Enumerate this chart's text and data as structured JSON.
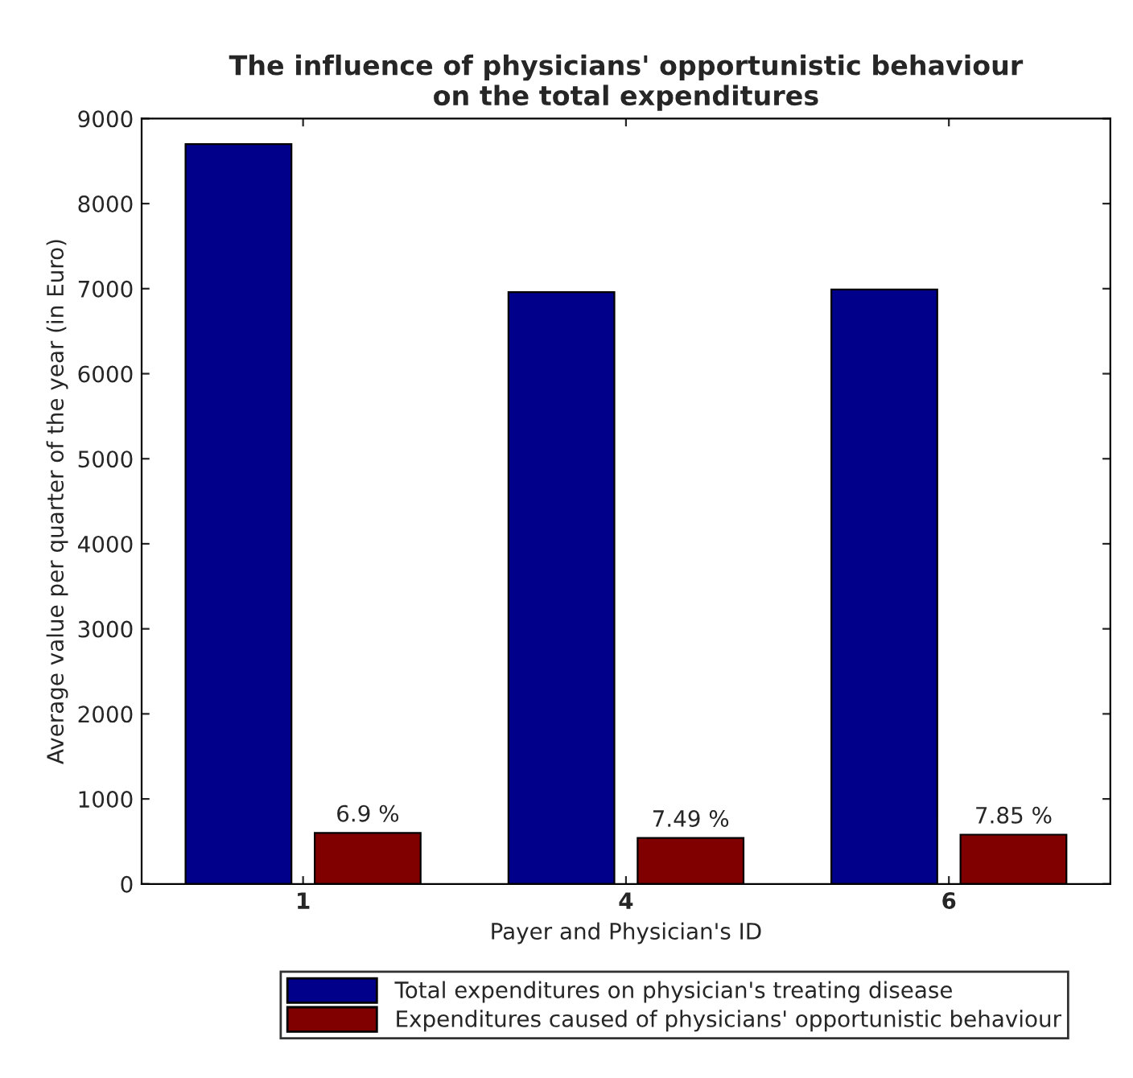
{
  "chart_data": {
    "type": "bar",
    "title": "The influence of physicians' opportunistic behaviour\non the total expenditures",
    "xlabel": "Payer and Physician's ID",
    "ylabel": "Average value per quarter of the year (in Euro)",
    "categories": [
      "1",
      "4",
      "6"
    ],
    "series": [
      {
        "name": "Total expenditures on physician's treating disease",
        "color": "#00008b",
        "values": [
          8700,
          6960,
          6990
        ]
      },
      {
        "name": "Expenditures caused of physicians' opportunistic behaviour",
        "color": "#800000",
        "values": [
          600,
          540,
          580
        ]
      }
    ],
    "annotations": [
      "6.9 %",
      "7.49 %",
      "7.85 %"
    ],
    "ylim": [
      0,
      9000
    ],
    "yticks": [
      0,
      1000,
      2000,
      3000,
      4000,
      5000,
      6000,
      7000,
      8000,
      9000
    ],
    "grid": false,
    "legend": "bottom"
  }
}
